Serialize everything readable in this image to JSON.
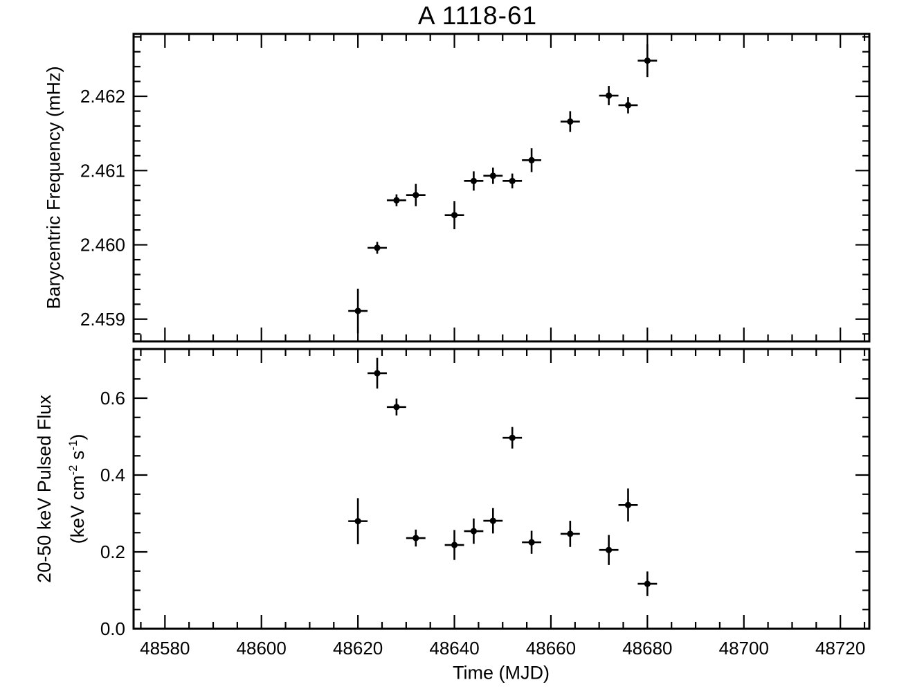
{
  "title": "A 1118-61",
  "x_axis": {
    "label": "Time (MJD)",
    "major_ticks": [
      48580,
      48600,
      48620,
      48640,
      48660,
      48680,
      48700,
      48720
    ],
    "tick_labels": [
      "48580",
      "48600",
      "48620",
      "48640",
      "48660",
      "48680",
      "48700",
      "48720"
    ],
    "minor_step": 5,
    "xlim": [
      48573.5,
      48726
    ]
  },
  "bottom_ylabel_parts": {
    "line1": "20-50 keV Pulsed Flux",
    "p1": "(keV cm",
    "s1": "-2",
    "p2": " s",
    "s2": "-1",
    "p3": ")"
  },
  "chart_data": [
    {
      "type": "scatter",
      "panel": "top",
      "title": "A 1118-61",
      "ylabel": "Barycentric Frequency (mHz)",
      "xlabel": "Time (MJD)",
      "xlim": [
        48573.5,
        48726
      ],
      "ylim": [
        2.4587,
        2.46284
      ],
      "grid": false,
      "marker": "filled-circle",
      "color": "#000000",
      "y_major_ticks": [
        2.459,
        2.46,
        2.461,
        2.462
      ],
      "y_tick_labels": [
        "2.459",
        "2.460",
        "2.461",
        "2.462"
      ],
      "y_minor_step": 0.0002,
      "x": [
        48620,
        48624,
        48628,
        48632,
        48640,
        48644,
        48648,
        48652,
        48656,
        48664,
        48672,
        48676,
        48680
      ],
      "y": [
        2.45911,
        2.45996,
        2.4606,
        2.46067,
        2.4604,
        2.46086,
        2.46093,
        2.46086,
        2.46114,
        2.46166,
        2.46201,
        2.46188,
        2.46248
      ],
      "xerr": [
        2,
        2,
        2,
        2,
        2,
        2,
        2,
        2,
        2,
        2,
        2,
        2,
        2
      ],
      "yerr": [
        0.0003,
        8e-05,
        8e-05,
        0.00015,
        0.00019,
        0.00013,
        0.00011,
        0.0001,
        0.00016,
        0.00014,
        0.00013,
        0.00011,
        0.00022
      ]
    },
    {
      "type": "scatter",
      "panel": "bottom",
      "ylabel": "20-50 keV Pulsed Flux (keV cm-2 s-1)",
      "xlabel": "Time (MJD)",
      "xlim": [
        48573.5,
        48726
      ],
      "ylim": [
        0,
        0.728
      ],
      "grid": false,
      "marker": "filled-circle",
      "color": "#000000",
      "y_major_ticks": [
        0.0,
        0.2,
        0.4,
        0.6
      ],
      "y_tick_labels": [
        "0.0",
        "0.2",
        "0.4",
        "0.6"
      ],
      "y_minor_step": 0.05,
      "x": [
        48620,
        48624,
        48628,
        48632,
        48640,
        48644,
        48648,
        48652,
        48656,
        48664,
        48672,
        48676,
        48680
      ],
      "y": [
        0.28,
        0.665,
        0.577,
        0.236,
        0.218,
        0.254,
        0.281,
        0.497,
        0.225,
        0.247,
        0.205,
        0.322,
        0.117
      ],
      "xerr": [
        2,
        2,
        2,
        2,
        2,
        2,
        2,
        2,
        2,
        2,
        2,
        2,
        2
      ],
      "yerr": [
        0.06,
        0.04,
        0.022,
        0.022,
        0.039,
        0.033,
        0.033,
        0.028,
        0.03,
        0.034,
        0.039,
        0.043,
        0.032
      ]
    }
  ]
}
